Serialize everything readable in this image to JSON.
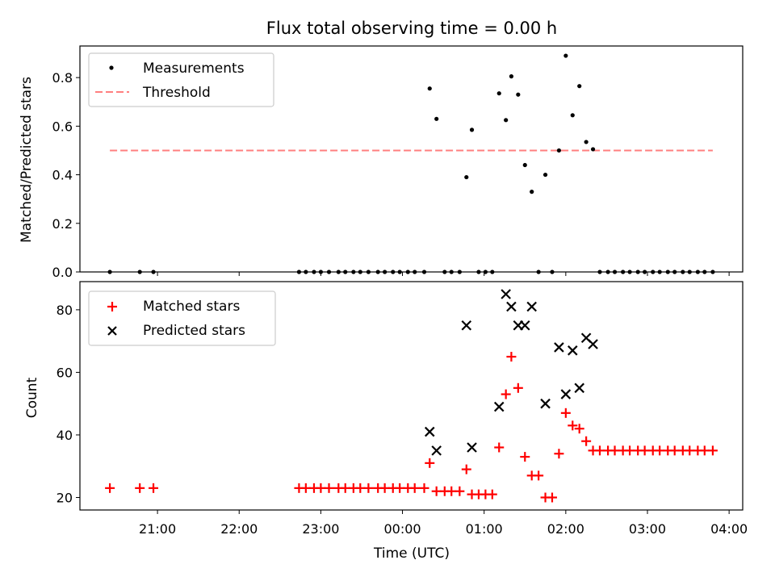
{
  "chart_data": [
    {
      "type": "scatter",
      "title": "Flux total observing time = 0.00 h",
      "xlabel": "",
      "ylabel": "Matched/Predicted stars",
      "ylim": [
        0,
        0.93
      ],
      "yticks": [
        0.0,
        0.2,
        0.4,
        0.6,
        0.8
      ],
      "ytick_labels": [
        "0.0",
        "0.2",
        "0.4",
        "0.6",
        "0.8"
      ],
      "legend_position": "upper-left",
      "threshold": {
        "name": "Threshold",
        "value": 0.5,
        "color": "#ff7f7f"
      },
      "series": [
        {
          "name": "Measurements",
          "color": "#000000",
          "points": [
            [
              "20:25",
              0.0
            ],
            [
              "20:47",
              0.0
            ],
            [
              "20:57",
              0.0
            ],
            [
              "22:44",
              0.0
            ],
            [
              "22:49",
              0.0
            ],
            [
              "22:55",
              0.0
            ],
            [
              "23:00",
              0.0
            ],
            [
              "23:06",
              0.0
            ],
            [
              "23:13",
              0.0
            ],
            [
              "23:18",
              0.0
            ],
            [
              "23:24",
              0.0
            ],
            [
              "23:29",
              0.0
            ],
            [
              "23:35",
              0.0
            ],
            [
              "23:42",
              0.0
            ],
            [
              "23:47",
              0.0
            ],
            [
              "23:53",
              0.0
            ],
            [
              "23:58",
              0.0
            ],
            [
              "00:04",
              0.0
            ],
            [
              "00:09",
              0.0
            ],
            [
              "00:16",
              0.0
            ],
            [
              "00:20",
              0.755
            ],
            [
              "00:25",
              0.63
            ],
            [
              "00:31",
              0.0
            ],
            [
              "00:36",
              0.0
            ],
            [
              "00:42",
              0.0
            ],
            [
              "00:47",
              0.39
            ],
            [
              "00:51",
              0.585
            ],
            [
              "00:56",
              0.0
            ],
            [
              "01:01",
              0.0
            ],
            [
              "01:06",
              0.0
            ],
            [
              "01:11",
              0.735
            ],
            [
              "01:16",
              0.625
            ],
            [
              "01:20",
              0.805
            ],
            [
              "01:25",
              0.73
            ],
            [
              "01:30",
              0.44
            ],
            [
              "01:35",
              0.33
            ],
            [
              "01:40",
              0.0
            ],
            [
              "01:45",
              0.4
            ],
            [
              "01:50",
              0.0
            ],
            [
              "01:55",
              0.5
            ],
            [
              "02:00",
              0.89
            ],
            [
              "02:05",
              0.645
            ],
            [
              "02:10",
              0.765
            ],
            [
              "02:15",
              0.535
            ],
            [
              "02:20",
              0.505
            ],
            [
              "02:25",
              0.0
            ],
            [
              "02:31",
              0.0
            ],
            [
              "02:36",
              0.0
            ],
            [
              "02:42",
              0.0
            ],
            [
              "02:47",
              0.0
            ],
            [
              "02:53",
              0.0
            ],
            [
              "02:58",
              0.0
            ],
            [
              "03:04",
              0.0
            ],
            [
              "03:09",
              0.0
            ],
            [
              "03:15",
              0.0
            ],
            [
              "03:20",
              0.0
            ],
            [
              "03:26",
              0.0
            ],
            [
              "03:31",
              0.0
            ],
            [
              "03:37",
              0.0
            ],
            [
              "03:42",
              0.0
            ],
            [
              "03:48",
              0.0
            ]
          ]
        }
      ]
    },
    {
      "type": "scatter",
      "title": "",
      "xlabel": "Time (UTC)",
      "ylabel": "Count",
      "ylim": [
        16,
        89
      ],
      "yticks": [
        20,
        40,
        60,
        80
      ],
      "ytick_labels": [
        "20",
        "40",
        "60",
        "80"
      ],
      "xtick_labels": [
        "21:00",
        "22:00",
        "23:00",
        "00:00",
        "01:00",
        "02:00",
        "03:00",
        "04:00"
      ],
      "legend_position": "upper-left",
      "series": [
        {
          "name": "Matched stars",
          "color": "#ff0000",
          "marker": "plus",
          "points": [
            [
              "20:25",
              23
            ],
            [
              "20:47",
              23
            ],
            [
              "20:57",
              23
            ],
            [
              "22:44",
              23
            ],
            [
              "22:49",
              23
            ],
            [
              "22:55",
              23
            ],
            [
              "23:00",
              23
            ],
            [
              "23:06",
              23
            ],
            [
              "23:13",
              23
            ],
            [
              "23:18",
              23
            ],
            [
              "23:24",
              23
            ],
            [
              "23:29",
              23
            ],
            [
              "23:35",
              23
            ],
            [
              "23:42",
              23
            ],
            [
              "23:47",
              23
            ],
            [
              "23:53",
              23
            ],
            [
              "23:58",
              23
            ],
            [
              "00:04",
              23
            ],
            [
              "00:09",
              23
            ],
            [
              "00:16",
              23
            ],
            [
              "00:20",
              31
            ],
            [
              "00:25",
              22
            ],
            [
              "00:31",
              22
            ],
            [
              "00:36",
              22
            ],
            [
              "00:42",
              22
            ],
            [
              "00:47",
              29
            ],
            [
              "00:51",
              21
            ],
            [
              "00:56",
              21
            ],
            [
              "01:01",
              21
            ],
            [
              "01:06",
              21
            ],
            [
              "01:11",
              36
            ],
            [
              "01:16",
              53
            ],
            [
              "01:20",
              65
            ],
            [
              "01:25",
              55
            ],
            [
              "01:30",
              33
            ],
            [
              "01:35",
              27
            ],
            [
              "01:40",
              27
            ],
            [
              "01:45",
              20
            ],
            [
              "01:50",
              20
            ],
            [
              "01:55",
              34
            ],
            [
              "02:00",
              47
            ],
            [
              "02:05",
              43
            ],
            [
              "02:10",
              42
            ],
            [
              "02:15",
              38
            ],
            [
              "02:20",
              35
            ],
            [
              "02:25",
              35
            ],
            [
              "02:31",
              35
            ],
            [
              "02:36",
              35
            ],
            [
              "02:42",
              35
            ],
            [
              "02:47",
              35
            ],
            [
              "02:53",
              35
            ],
            [
              "02:58",
              35
            ],
            [
              "03:04",
              35
            ],
            [
              "03:09",
              35
            ],
            [
              "03:15",
              35
            ],
            [
              "03:20",
              35
            ],
            [
              "03:26",
              35
            ],
            [
              "03:31",
              35
            ],
            [
              "03:37",
              35
            ],
            [
              "03:42",
              35
            ],
            [
              "03:48",
              35
            ]
          ]
        },
        {
          "name": "Predicted stars",
          "color": "#000000",
          "marker": "x",
          "points": [
            [
              "00:20",
              41
            ],
            [
              "00:25",
              35
            ],
            [
              "00:47",
              75
            ],
            [
              "00:51",
              36
            ],
            [
              "01:11",
              49
            ],
            [
              "01:16",
              85
            ],
            [
              "01:20",
              81
            ],
            [
              "01:25",
              75
            ],
            [
              "01:30",
              75
            ],
            [
              "01:35",
              81
            ],
            [
              "01:45",
              50
            ],
            [
              "01:55",
              68
            ],
            [
              "02:00",
              53
            ],
            [
              "02:05",
              67
            ],
            [
              "02:10",
              55
            ],
            [
              "02:15",
              71
            ],
            [
              "02:20",
              69
            ]
          ]
        }
      ]
    }
  ]
}
